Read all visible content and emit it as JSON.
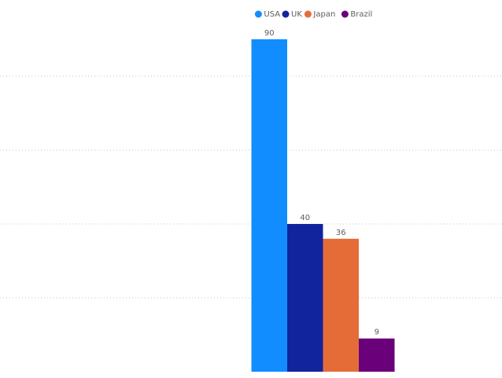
{
  "chart_data": {
    "type": "bar",
    "categories": [
      null
    ],
    "series": [
      {
        "name": "USA",
        "color": "#118DFF",
        "values": [
          90
        ]
      },
      {
        "name": "UK",
        "color": "#12239E",
        "values": [
          40
        ]
      },
      {
        "name": "Japan",
        "color": "#E66C37",
        "values": [
          36
        ]
      },
      {
        "name": "Brazil",
        "color": "#6B007B",
        "values": [
          9
        ]
      }
    ],
    "ylim": [
      0,
      100
    ],
    "yticks": [
      20,
      40,
      60,
      80
    ],
    "grid": true,
    "legend": "top"
  }
}
